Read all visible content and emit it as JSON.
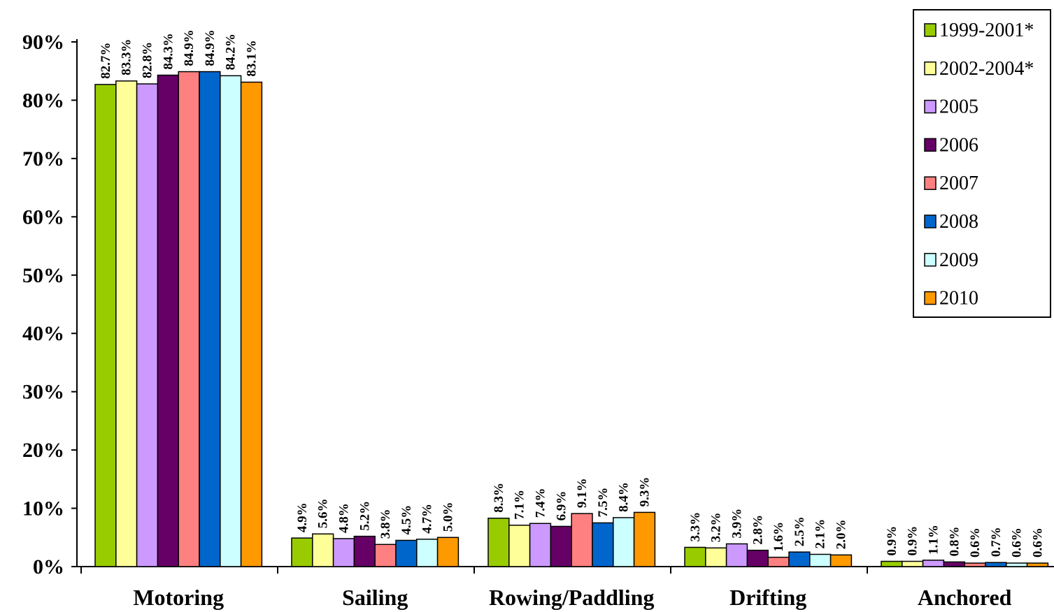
{
  "chart_data": {
    "type": "bar",
    "categories": [
      "Motoring",
      "Sailing",
      "Rowing/Paddling",
      "Drifting",
      "Anchored"
    ],
    "series": [
      {
        "name": "1999-2001*",
        "color": "#99cc00",
        "values": [
          82.7,
          4.9,
          8.3,
          3.3,
          0.9
        ],
        "labels": [
          "82.7%",
          "4.9%",
          "8.3%",
          "3.3%",
          "0.9%"
        ]
      },
      {
        "name": "2002-2004*",
        "color": "#ffff99",
        "values": [
          83.3,
          5.6,
          7.1,
          3.2,
          0.9
        ],
        "labels": [
          "83.3%",
          "5.6%",
          "7.1%",
          "3.2%",
          "0.9%"
        ]
      },
      {
        "name": "2005",
        "color": "#cc99ff",
        "values": [
          82.8,
          4.8,
          7.4,
          3.9,
          1.1
        ],
        "labels": [
          "82.8%",
          "4.8%",
          "7.4%",
          "3.9%",
          "1.1%"
        ]
      },
      {
        "name": "2006",
        "color": "#660066",
        "values": [
          84.3,
          5.2,
          6.9,
          2.8,
          0.8
        ],
        "labels": [
          "84.3%",
          "5.2%",
          "6.9%",
          "2.8%",
          "0.8%"
        ]
      },
      {
        "name": "2007",
        "color": "#ff8080",
        "values": [
          84.9,
          3.8,
          9.1,
          1.6,
          0.6
        ],
        "labels": [
          "84.9%",
          "3.8%",
          "9.1%",
          "1.6%",
          "0.6%"
        ]
      },
      {
        "name": "2008",
        "color": "#0066cc",
        "values": [
          84.9,
          4.5,
          7.5,
          2.5,
          0.7
        ],
        "labels": [
          "84.9%",
          "4.5%",
          "7.5%",
          "2.5%",
          "0.7%"
        ]
      },
      {
        "name": "2009",
        "color": "#ccffff",
        "values": [
          84.2,
          4.7,
          8.4,
          2.1,
          0.6
        ],
        "labels": [
          "84.2%",
          "4.7%",
          "8.4%",
          "2.1%",
          "0.6%"
        ]
      },
      {
        "name": "2010",
        "color": "#ff9900",
        "values": [
          83.1,
          5.0,
          9.3,
          2.0,
          0.6
        ],
        "labels": [
          "83.1%",
          "5.0%",
          "9.3%",
          "2.0%",
          "0.6%"
        ]
      }
    ],
    "y_ticks": [
      "0%",
      "10%",
      "20%",
      "30%",
      "40%",
      "50%",
      "60%",
      "70%",
      "80%",
      "90%"
    ],
    "ylim": [
      0,
      90
    ],
    "title": "",
    "xlabel": "",
    "ylabel": "",
    "grid": false,
    "legend": "top-right"
  }
}
